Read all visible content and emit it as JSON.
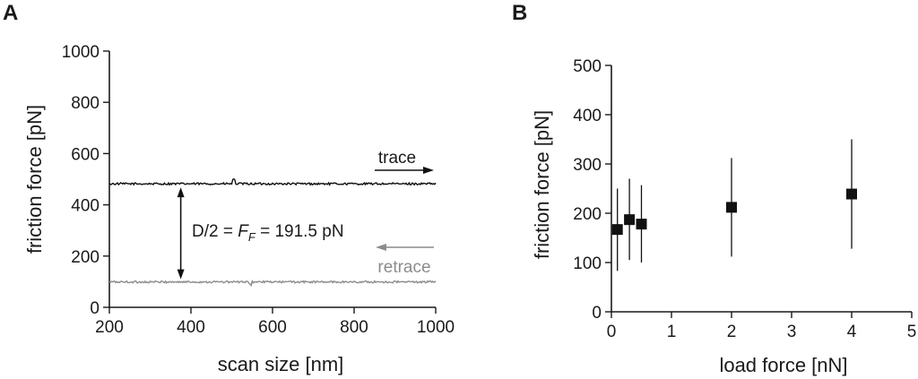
{
  "chart_data": [
    {
      "panel": "A",
      "type": "line",
      "xlabel": "scan size [nm]",
      "ylabel": "friction force [pN]",
      "xlim": [
        200,
        1000
      ],
      "ylim": [
        0,
        1000
      ],
      "xticks": [
        200,
        400,
        600,
        800,
        1000
      ],
      "yticks": [
        0,
        200,
        400,
        600,
        800,
        1000
      ],
      "series": [
        {
          "name": "trace",
          "color": "#111111",
          "mean": 482,
          "noise": 8
        },
        {
          "name": "retrace",
          "color": "#8c8c8c",
          "mean": 99,
          "noise": 8
        }
      ],
      "annotation": {
        "prefix": "D/2 = ",
        "symbol": "F",
        "subscript": "F",
        "suffix": " = 191.5 pN",
        "x": 375,
        "from": 99,
        "to": 482
      },
      "legend": {
        "trace": "trace",
        "retrace": "retrace"
      }
    },
    {
      "panel": "B",
      "type": "scatter",
      "xlabel": "load force [nN]",
      "ylabel": "friction force [pN]",
      "xlim": [
        0,
        5
      ],
      "ylim": [
        0,
        500
      ],
      "xticks": [
        0,
        1,
        2,
        3,
        4,
        5
      ],
      "yticks": [
        0,
        100,
        200,
        300,
        400,
        500
      ],
      "points": [
        {
          "x": 0.1,
          "y": 167,
          "ymin": 83,
          "ymax": 250
        },
        {
          "x": 0.3,
          "y": 187,
          "ymin": 105,
          "ymax": 270
        },
        {
          "x": 0.5,
          "y": 178,
          "ymin": 100,
          "ymax": 257
        },
        {
          "x": 2.0,
          "y": 212,
          "ymin": 112,
          "ymax": 312
        },
        {
          "x": 4.0,
          "y": 239,
          "ymin": 128,
          "ymax": 350
        }
      ]
    }
  ]
}
